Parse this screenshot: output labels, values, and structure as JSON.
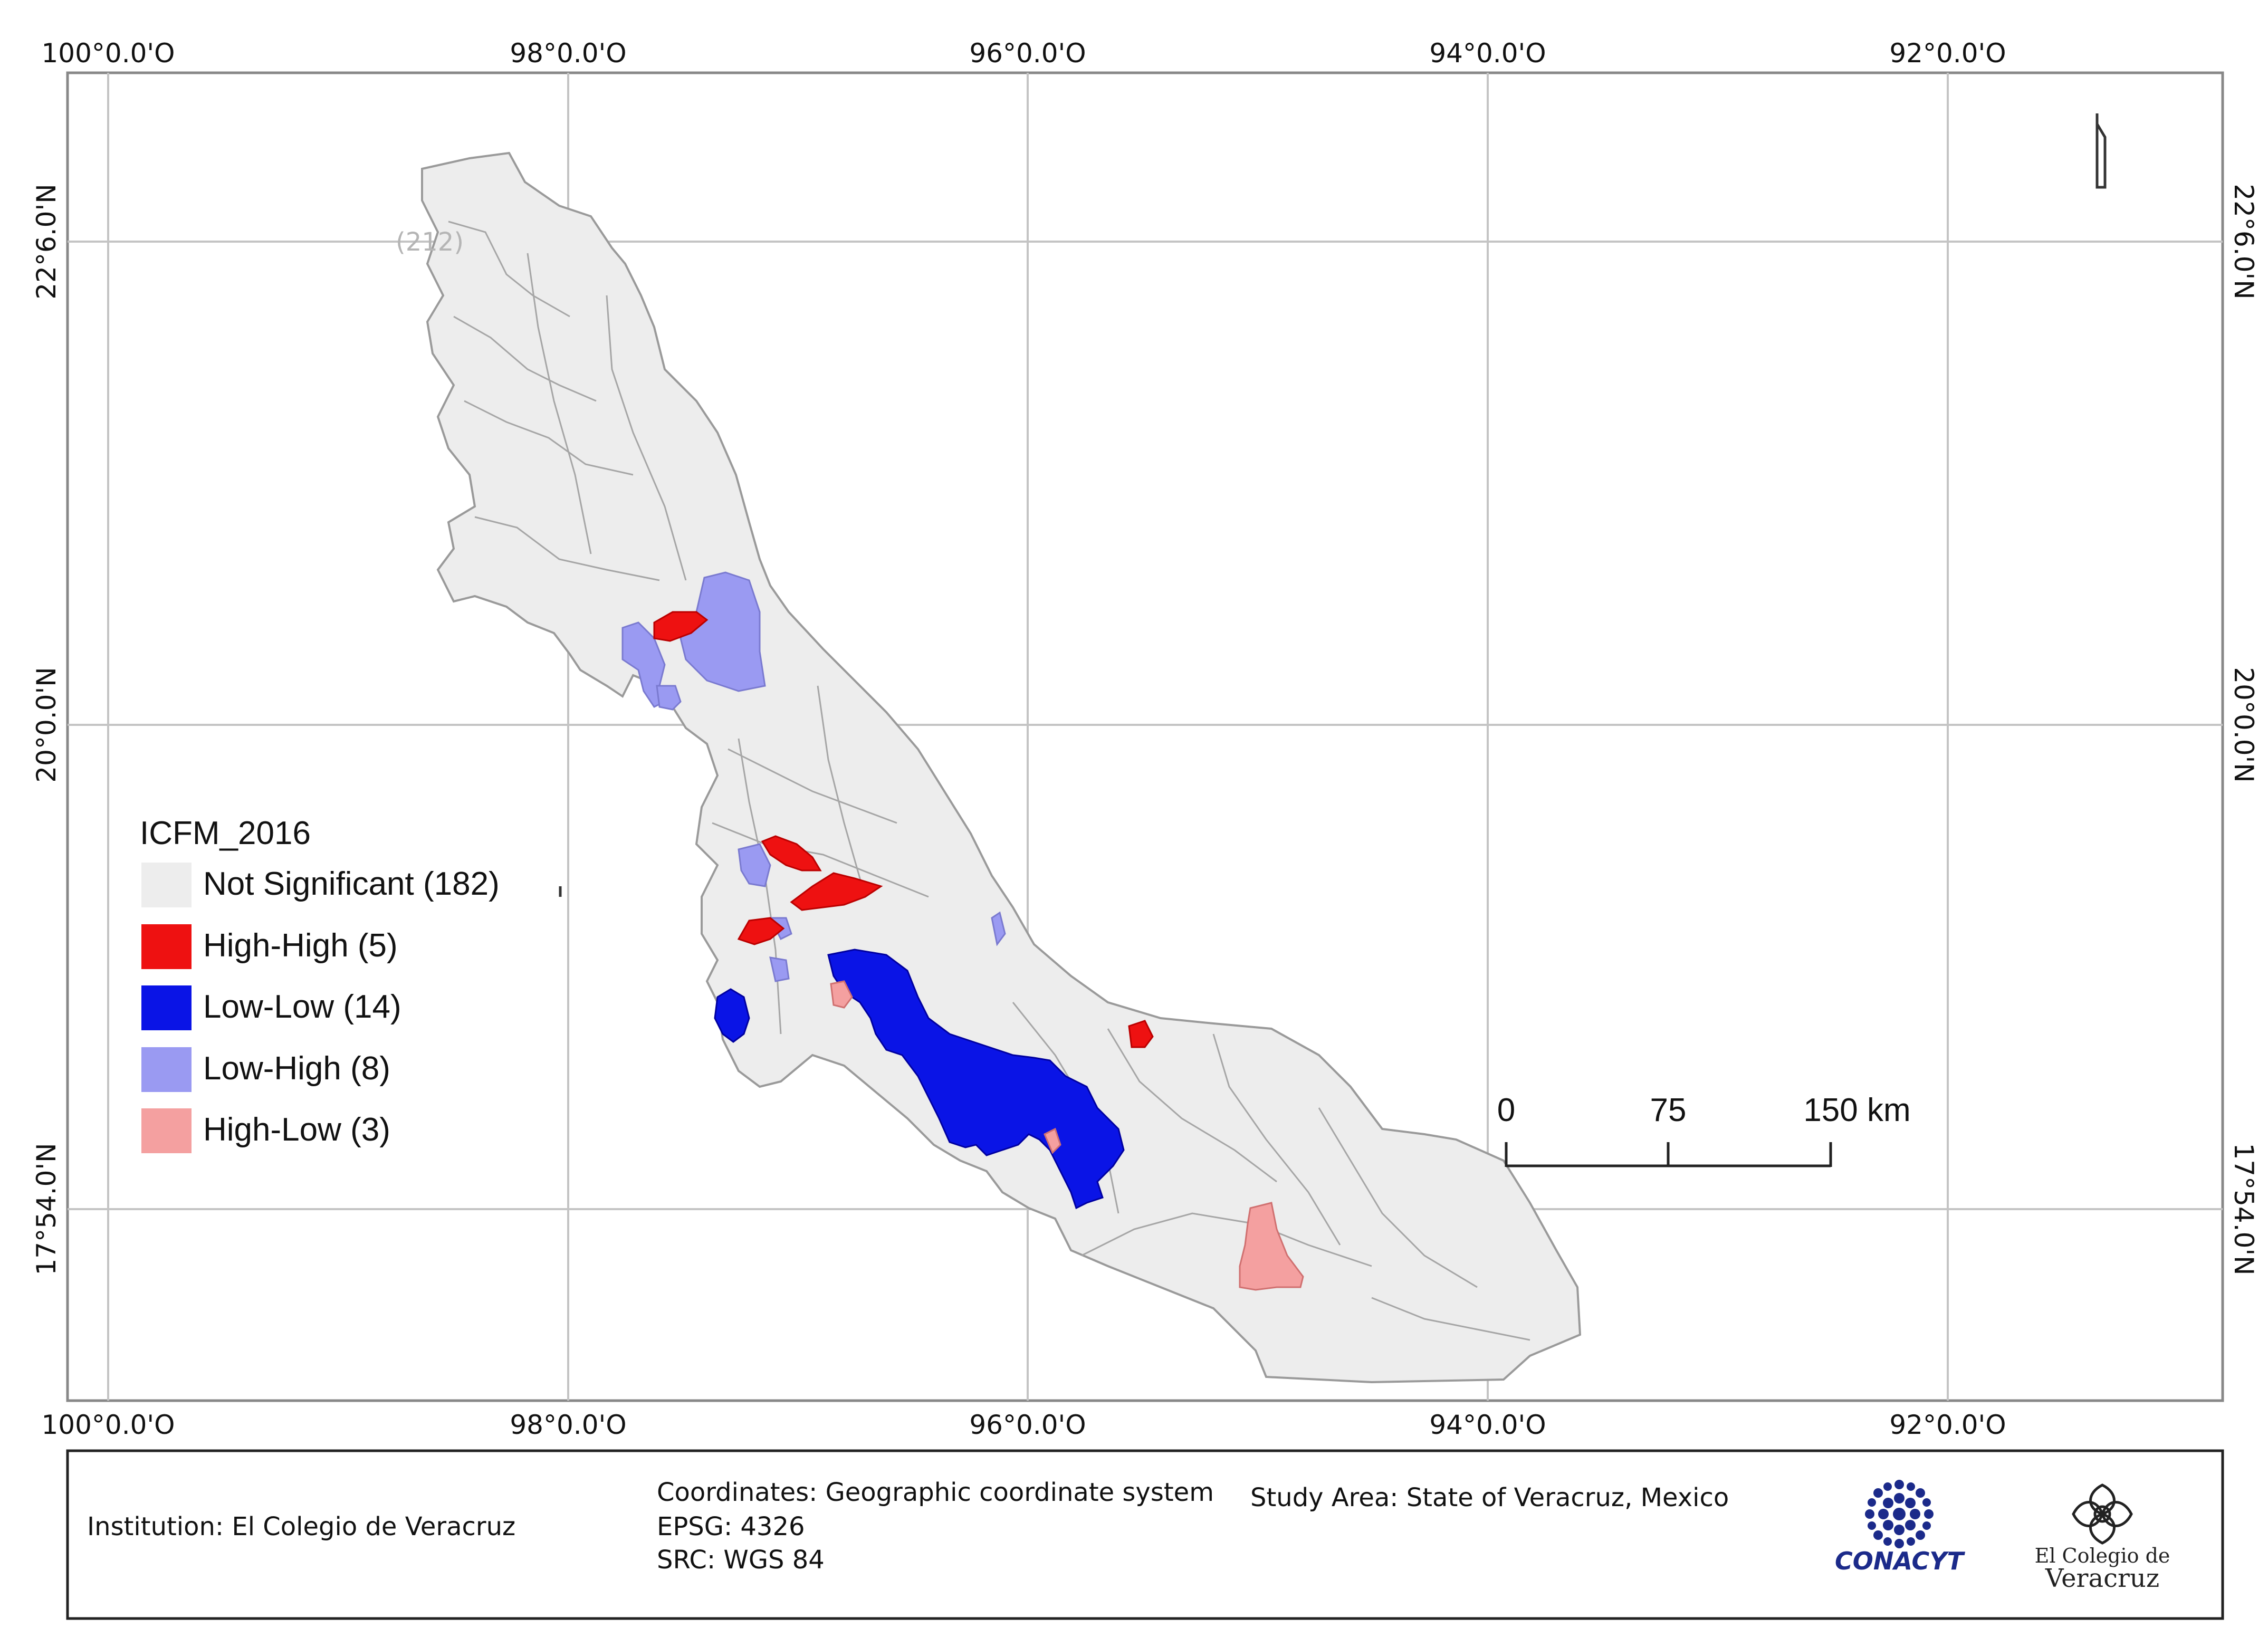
{
  "map": {
    "lon_labels": [
      "100°0.0'O",
      "98°0.0'O",
      "96°0.0'O",
      "94°0.0'O",
      "92°0.0'O"
    ],
    "lat_labels": [
      "22°6.0'N",
      "20°0.0'N",
      "17°54.0'N"
    ],
    "faint_label": "(212)"
  },
  "legend": {
    "title": "ICFM_2016",
    "items": [
      {
        "label": "Not Significant (182)",
        "color": "#ededed"
      },
      {
        "label": "High-High (5)",
        "color": "#ee1111"
      },
      {
        "label": "Low-Low (14)",
        "color": "#0a14e6"
      },
      {
        "label": "Low-High (8)",
        "color": "#9a9af2"
      },
      {
        "label": "High-Low (3)",
        "color": "#f4a0a0"
      }
    ]
  },
  "scale_bar": {
    "labels": [
      "0",
      "75",
      "150 km"
    ]
  },
  "info_panel": {
    "institution": "Institution: El Colegio de Veracruz",
    "coordinates_line1": "Coordinates: Geographic coordinate system",
    "coordinates_line2": "EPSG: 4326",
    "coordinates_line3": "SRC: WGS 84",
    "study_area": "Study Area: State of Veracruz, Mexico",
    "logo1_text": "CONACYT",
    "logo2_line1": "El Colegio de",
    "logo2_line2": "Veracruz"
  },
  "icons": {
    "north_arrow": "north-arrow-icon",
    "conacyt_logo": "conacyt-logo-icon",
    "colegio_logo": "colegio-veracruz-logo-icon"
  }
}
